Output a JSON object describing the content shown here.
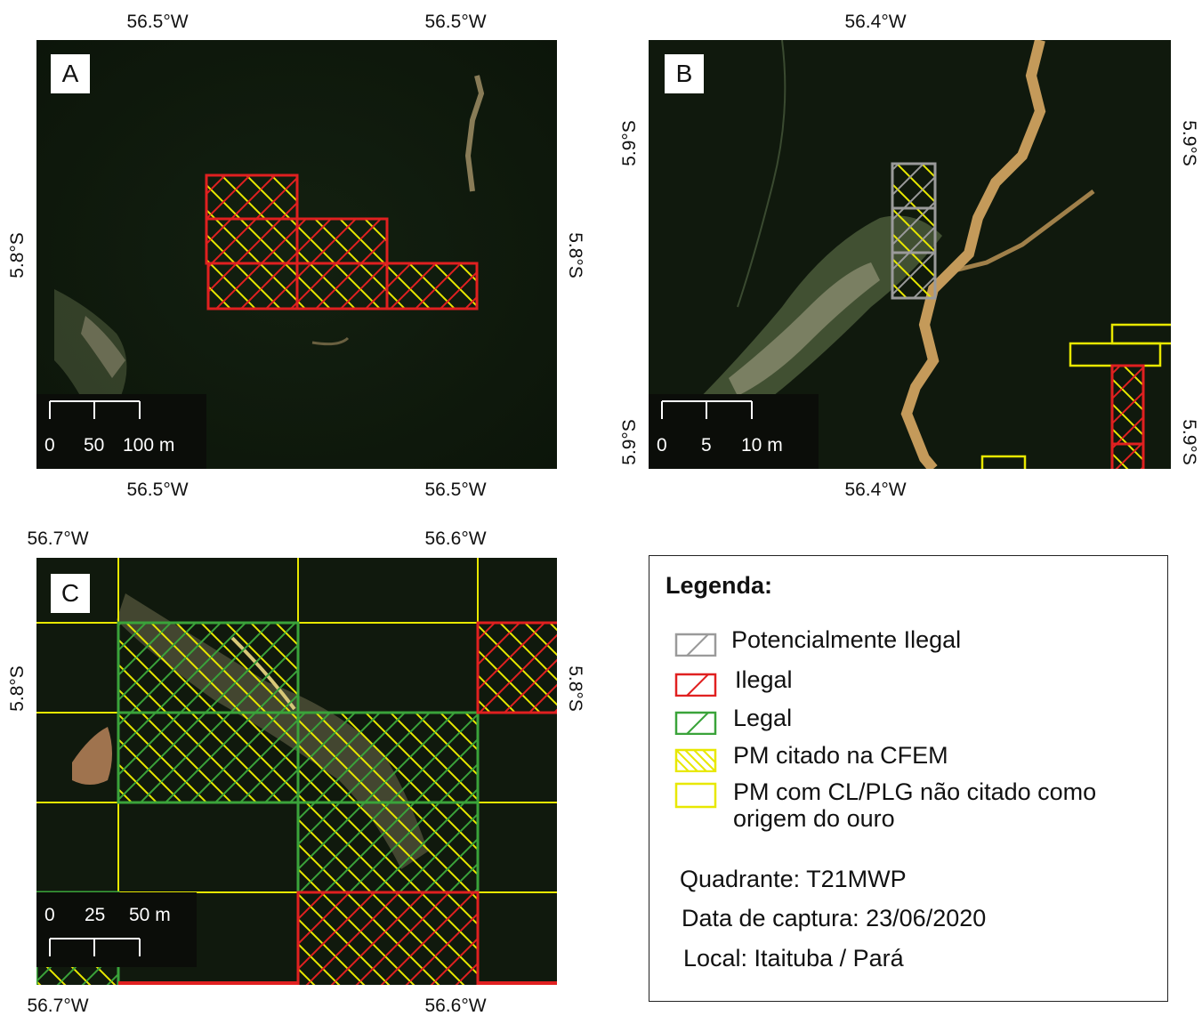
{
  "panels": {
    "a": {
      "label": "A",
      "top_lon": [
        "56.5°W",
        "56.5°W"
      ],
      "bottom_lon": [
        "56.5°W",
        "56.5°W"
      ],
      "left_lat": "5.8°S",
      "right_lat": "5.8°S",
      "scale": [
        "0",
        "50",
        "100 m"
      ]
    },
    "b": {
      "label": "B",
      "top_lon": "56.4°W",
      "bottom_lon": "56.4°W",
      "left_lat": [
        "5.9°S",
        "5.9°S"
      ],
      "right_lat": [
        "5.9°S",
        "5.9°S"
      ],
      "scale": [
        "0",
        "5",
        "10 m"
      ]
    },
    "c": {
      "label": "C",
      "top_lon": [
        "56.7°W",
        "56.6°W"
      ],
      "bottom_lon": [
        "56.7°W",
        "56.6°W"
      ],
      "left_lat": "5.8°S",
      "right_lat": "5.8°S",
      "scale": [
        "0",
        "25",
        "50 m"
      ]
    }
  },
  "legend": {
    "title": "Legenda:",
    "items": [
      {
        "label": "Potencialmente Ilegal",
        "color": "#9a9a9a"
      },
      {
        "label": "Ilegal",
        "color": "#e02020"
      },
      {
        "label": "Legal",
        "color": "#3aa33a"
      },
      {
        "label": "PM citado na CFEM",
        "color": "#e8e800"
      },
      {
        "label": "PM com CL/PLG não citado como origem do ouro",
        "color": "#e8e800"
      }
    ],
    "quadrante": "Quadrante: T21MWP",
    "data_captura": "Data de captura: 23/06/2020",
    "local": "Local: Itaituba / Pará"
  },
  "colors": {
    "forest": "#0f1a0c",
    "illegal": "#e02020",
    "legal": "#3aa33a",
    "potential": "#9a9a9a",
    "cfem": "#e8e800",
    "river": "#c49a5a"
  }
}
